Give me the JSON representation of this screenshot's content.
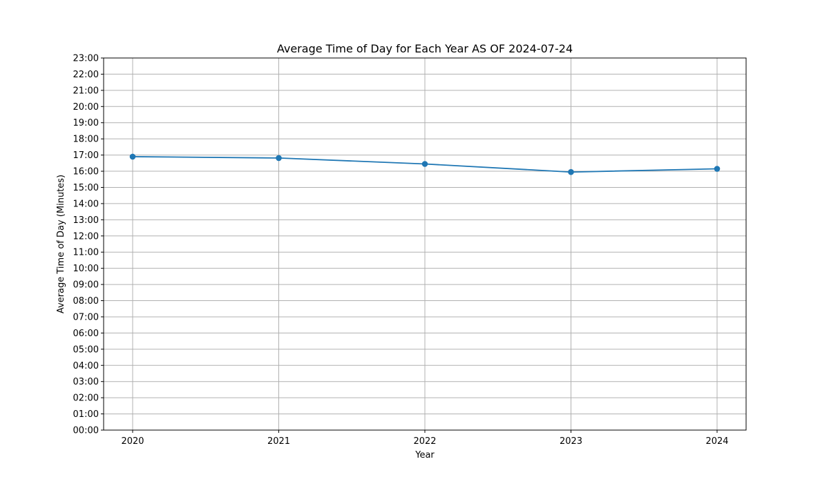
{
  "chart_data": {
    "type": "line",
    "title": "Average Time of Day for Each Year AS OF 2024-07-24",
    "xlabel": "Year",
    "ylabel": "Average Time of Day (Minutes)",
    "x": [
      "2020",
      "2021",
      "2022",
      "2023",
      "2024"
    ],
    "series": [
      {
        "name": "",
        "values": [
          "16:54",
          "16:49",
          "16:27",
          "15:57",
          "16:09"
        ],
        "color": "#1f77b4",
        "marker": "circle"
      }
    ],
    "yticks": [
      "00:00",
      "01:00",
      "02:00",
      "03:00",
      "04:00",
      "05:00",
      "06:00",
      "07:00",
      "08:00",
      "09:00",
      "10:00",
      "11:00",
      "12:00",
      "13:00",
      "14:00",
      "15:00",
      "16:00",
      "17:00",
      "18:00",
      "19:00",
      "20:00",
      "21:00",
      "22:00",
      "23:00"
    ],
    "ylim": [
      "00:00",
      "23:00"
    ],
    "grid": true,
    "legend": "none",
    "colors": {
      "line": "#1f77b4",
      "grid": "#b0b0b0",
      "axes": "#000000"
    }
  }
}
